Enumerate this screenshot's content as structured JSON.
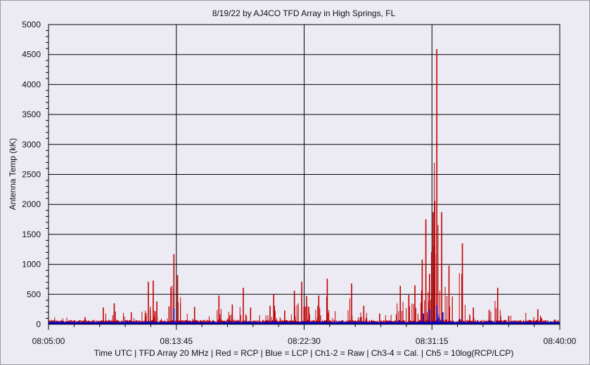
{
  "chart_data": {
    "type": "line",
    "title": "8/19/22  by  AJ4CO TFD Array  in  High Springs, FL",
    "ylabel": "Antenna Temp (kK)",
    "xlabel": "Time UTC | TFD Array 20 MHz | Red = RCP | Blue = LCP | Ch1-2 = Raw | Ch3-4 = Cal. | Ch5 = 10log(RCP/LCP)",
    "ylim": [
      0,
      5000
    ],
    "yticks": [
      "0",
      "500",
      "1000",
      "1500",
      "2000",
      "2500",
      "3000",
      "3500",
      "4000",
      "4500",
      "5000"
    ],
    "xlim": [
      "08:05:00",
      "08:40:00"
    ],
    "xticks": [
      "08:05:00",
      "08:13:45",
      "08:22:30",
      "08:31:15",
      "08:40:00"
    ],
    "grid": true,
    "colors": {
      "rcp": "#c00000",
      "lcp": "#0000cc",
      "grid": "#000000",
      "background": "#ecebf3"
    },
    "series": [
      {
        "name": "Red = RCP",
        "color": "#c00000",
        "peaks": [
          [
            "08:07:30",
            120
          ],
          [
            "08:08:45",
            280
          ],
          [
            "08:09:30",
            350
          ],
          [
            "08:10:40",
            200
          ],
          [
            "08:11:50",
            710
          ],
          [
            "08:12:10",
            730
          ],
          [
            "08:12:25",
            380
          ],
          [
            "08:13:15",
            300
          ],
          [
            "08:13:35",
            1170
          ],
          [
            "08:13:50",
            820
          ],
          [
            "08:15:00",
            290
          ],
          [
            "08:16:40",
            480
          ],
          [
            "08:17:35",
            330
          ],
          [
            "08:18:20",
            610
          ],
          [
            "08:18:50",
            280
          ],
          [
            "08:20:10",
            310
          ],
          [
            "08:20:25",
            500
          ],
          [
            "08:21:10",
            230
          ],
          [
            "08:21:50",
            560
          ],
          [
            "08:22:20",
            710
          ],
          [
            "08:22:40",
            470
          ],
          [
            "08:23:30",
            480
          ],
          [
            "08:24:05",
            760
          ],
          [
            "08:25:45",
            680
          ],
          [
            "08:26:35",
            310
          ],
          [
            "08:27:40",
            180
          ],
          [
            "08:29:05",
            640
          ],
          [
            "08:29:40",
            490
          ],
          [
            "08:30:05",
            650
          ],
          [
            "08:30:35",
            1080
          ],
          [
            "08:30:50",
            1750
          ],
          [
            "08:31:05",
            840
          ],
          [
            "08:31:20",
            1870
          ],
          [
            "08:31:35",
            4590
          ],
          [
            "08:31:55",
            1870
          ],
          [
            "08:32:25",
            980
          ],
          [
            "08:33:20",
            1350
          ],
          [
            "08:34:05",
            280
          ],
          [
            "08:35:10",
            240
          ],
          [
            "08:35:45",
            610
          ],
          [
            "08:36:30",
            140
          ],
          [
            "08:38:30",
            250
          ],
          [
            "08:39:40",
            80
          ]
        ]
      },
      {
        "name": "Blue = LCP",
        "color": "#0000cc",
        "peaks": [
          [
            "08:09:30",
            40
          ],
          [
            "08:11:50",
            60
          ],
          [
            "08:13:35",
            270
          ],
          [
            "08:17:00",
            40
          ],
          [
            "08:20:20",
            60
          ],
          [
            "08:24:00",
            60
          ],
          [
            "08:26:30",
            50
          ],
          [
            "08:29:00",
            70
          ],
          [
            "08:30:40",
            180
          ],
          [
            "08:31:05",
            250
          ],
          [
            "08:31:35",
            310
          ],
          [
            "08:32:00",
            200
          ],
          [
            "08:33:10",
            90
          ],
          [
            "08:35:10",
            60
          ],
          [
            "08:38:30",
            40
          ]
        ]
      }
    ]
  }
}
